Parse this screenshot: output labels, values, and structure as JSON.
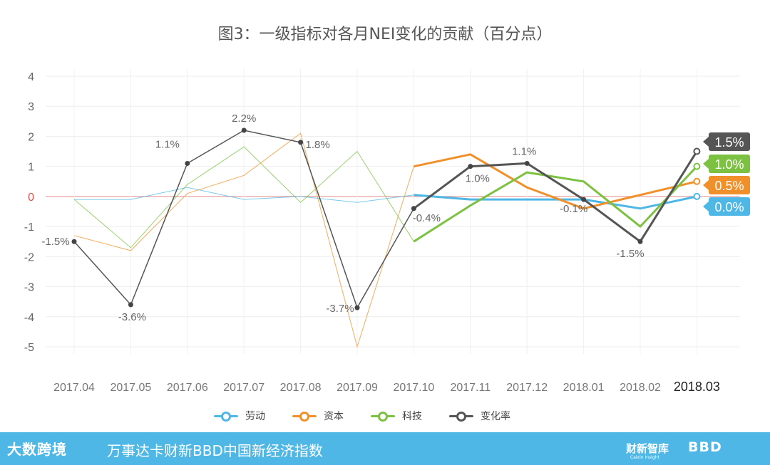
{
  "title": "图3：一级指标对各月NEI变化的贡献（百分点）",
  "chart_data": {
    "type": "line",
    "categories": [
      "2017.04",
      "2017.05",
      "2017.06",
      "2017.07",
      "2017.08",
      "2017.09",
      "2017.10",
      "2017.11",
      "2017.12",
      "2018.01",
      "2018.02",
      "2018.03"
    ],
    "ylim": [
      -5,
      4
    ],
    "yticks": [
      4,
      3,
      2,
      1,
      0,
      -1,
      -2,
      -3,
      -4,
      -5
    ],
    "grid": true,
    "legend_position": "bottom",
    "series": [
      {
        "name": "劳动",
        "color": "#4FB7E6",
        "values": [
          -0.1,
          -0.1,
          0.3,
          -0.1,
          0.0,
          -0.2,
          0.05,
          -0.1,
          -0.1,
          -0.1,
          -0.4,
          0.0
        ]
      },
      {
        "name": "资本",
        "color": "#F0902A",
        "values": [
          -1.3,
          -1.8,
          0.1,
          0.7,
          2.1,
          -5.0,
          1.0,
          1.4,
          0.3,
          -0.4,
          0.05,
          0.5
        ]
      },
      {
        "name": "科技",
        "color": "#7CC142",
        "values": [
          -0.1,
          -1.7,
          0.4,
          1.65,
          -0.2,
          1.5,
          -1.5,
          -0.3,
          0.8,
          0.5,
          -1.0,
          1.0
        ]
      },
      {
        "name": "变化率",
        "color": "#555555",
        "values": [
          -1.5,
          -3.6,
          1.1,
          2.2,
          1.8,
          -3.7,
          -0.4,
          1.0,
          1.1,
          -0.1,
          -1.5,
          1.5
        ],
        "labels": [
          "-1.5%",
          "-3.6%",
          "1.1%",
          "2.2%",
          "1.8%",
          "-3.7%",
          "-0.4%",
          "1.0%",
          "1.1%",
          "-0.1%",
          "-1.5%",
          ""
        ]
      }
    ],
    "end_badges": [
      "1.5%",
      "1.0%",
      "0.5%",
      "0.0%"
    ]
  },
  "footer": {
    "brand": "大数跨境",
    "title": "万事达卡财新BBD中国新经济指数",
    "logo2": "财新智库",
    "logo2_sub": "Caixin Insight",
    "logo3": "BBD"
  }
}
